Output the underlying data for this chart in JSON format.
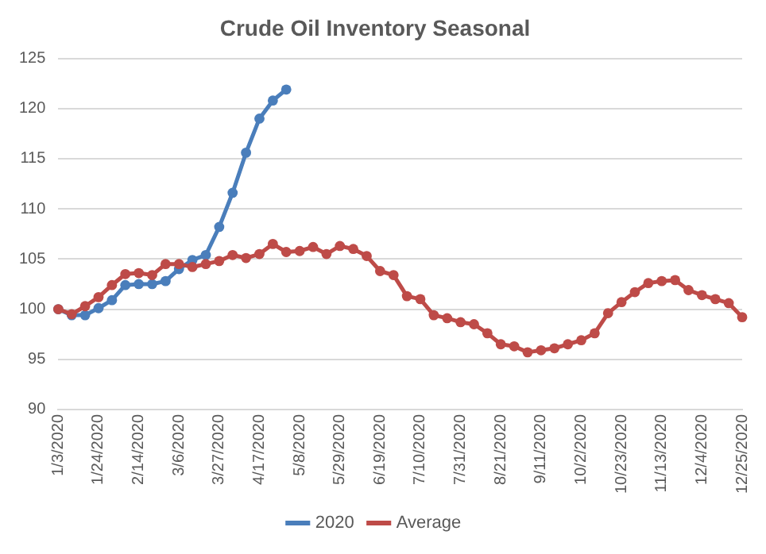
{
  "chart_data": {
    "type": "line",
    "title": "Crude Oil Inventory Seasonal",
    "categories": [
      "1/3/2020",
      null,
      null,
      "1/24/2020",
      null,
      null,
      "2/14/2020",
      null,
      null,
      "3/6/2020",
      null,
      null,
      "3/27/2020",
      null,
      null,
      "4/17/2020",
      null,
      null,
      "5/8/2020",
      null,
      null,
      "5/29/2020",
      null,
      null,
      "6/19/2020",
      null,
      null,
      "7/10/2020",
      null,
      null,
      "7/31/2020",
      null,
      null,
      "8/21/2020",
      null,
      null,
      "9/11/2020",
      null,
      null,
      "10/2/2020",
      null,
      null,
      "10/23/2020",
      null,
      null,
      "11/13/2020",
      null,
      null,
      "12/4/2020",
      null,
      null,
      "12/25/2020"
    ],
    "series": [
      {
        "name": "2020",
        "color": "#4a7ebb",
        "values": [
          100,
          99.4,
          99.4,
          100.1,
          100.9,
          102.4,
          102.5,
          102.5,
          102.8,
          104.0,
          104.9,
          105.4,
          108.2,
          111.6,
          115.6,
          119.0,
          120.8,
          121.9,
          null,
          null,
          null,
          null,
          null,
          null,
          null,
          null,
          null,
          null,
          null,
          null,
          null,
          null,
          null,
          null,
          null,
          null,
          null,
          null,
          null,
          null,
          null,
          null,
          null,
          null,
          null,
          null,
          null,
          null,
          null,
          null,
          null,
          null
        ]
      },
      {
        "name": "Average",
        "color": "#be4b48",
        "values": [
          100,
          99.5,
          100.3,
          101.2,
          102.4,
          103.5,
          103.6,
          103.4,
          104.5,
          104.5,
          104.2,
          104.5,
          104.8,
          105.4,
          105.1,
          105.5,
          106.5,
          105.7,
          105.8,
          106.2,
          105.5,
          106.3,
          106.0,
          105.3,
          103.8,
          103.4,
          101.3,
          101.0,
          99.4,
          99.1,
          98.7,
          98.5,
          97.6,
          96.5,
          96.3,
          95.7,
          95.9,
          96.1,
          96.5,
          96.9,
          97.6,
          99.6,
          100.7,
          101.7,
          102.6,
          102.8,
          102.9,
          101.9,
          101.4,
          101.0,
          100.6,
          99.2
        ]
      }
    ],
    "ylim": [
      90,
      125
    ],
    "yticks": [
      90,
      95,
      100,
      105,
      110,
      115,
      120,
      125
    ],
    "grid": "y",
    "legend": "bottom",
    "marker": "circle",
    "line_style": "solid"
  }
}
